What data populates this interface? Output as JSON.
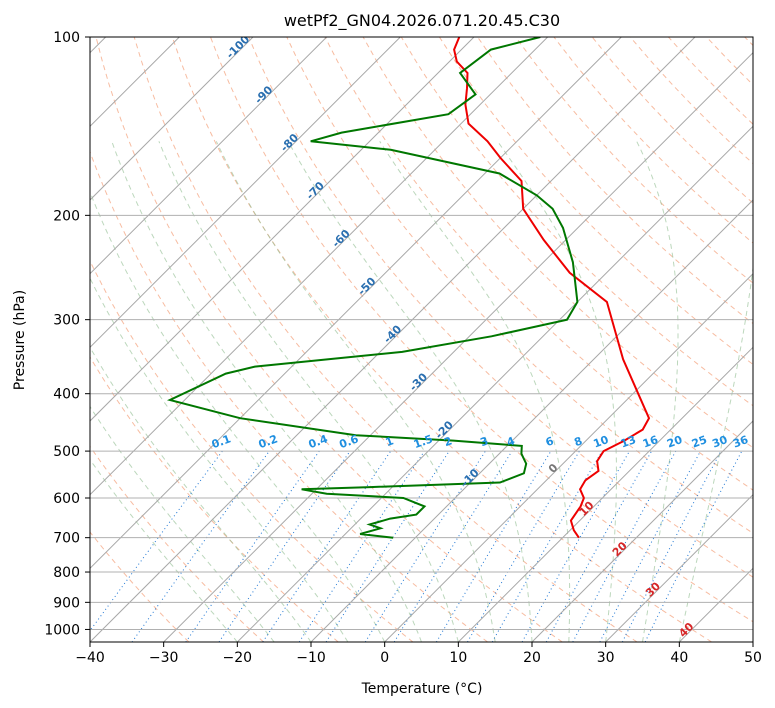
{
  "chart_data": {
    "type": "line",
    "subtype": "skew-t log-p diagram",
    "title": "wetPf2_GN04.2026.071.20.45.C30",
    "xlabel": "Temperature (°C)",
    "ylabel": "Pressure (hPa)",
    "xlim": [
      -40,
      50
    ],
    "ylim": [
      1050,
      100
    ],
    "yscale": "log",
    "x_ticks": [
      -40,
      -30,
      -20,
      -10,
      0,
      10,
      20,
      30,
      40,
      50
    ],
    "y_ticks": [
      1000,
      900,
      800,
      700,
      600,
      500,
      400,
      300,
      200,
      100
    ],
    "grid": true,
    "series": [
      {
        "color": "#ee0000",
        "points": [
          [
            12.2,
            700
          ],
          [
            10.5,
            680
          ],
          [
            8.8,
            655
          ],
          [
            8.2,
            620
          ],
          [
            7.5,
            600
          ],
          [
            5.8,
            580
          ],
          [
            5.3,
            560
          ],
          [
            5.8,
            540
          ],
          [
            4.3,
            520
          ],
          [
            3.8,
            500
          ],
          [
            5.2,
            480
          ],
          [
            6.2,
            460
          ],
          [
            5.5,
            440
          ],
          [
            -6,
            350
          ],
          [
            -16,
            280
          ],
          [
            -25,
            250
          ],
          [
            -33,
            220
          ],
          [
            -40,
            195
          ],
          [
            -44,
            175
          ],
          [
            -50,
            160
          ],
          [
            -54,
            150
          ],
          [
            -59,
            140
          ],
          [
            -62,
            130
          ],
          [
            -64,
            122
          ],
          [
            -66,
            115
          ],
          [
            -69,
            110
          ],
          [
            -71,
            105
          ],
          [
            -72,
            100
          ]
        ]
      },
      {
        "color": "#007700",
        "points": [
          [
            -13,
            700
          ],
          [
            -18,
            690
          ],
          [
            -16,
            675
          ],
          [
            -18,
            665
          ],
          [
            -16,
            650
          ],
          [
            -13,
            640
          ],
          [
            -13,
            620
          ],
          [
            -17,
            600
          ],
          [
            -28,
            590
          ],
          [
            -32,
            580
          ],
          [
            -23,
            575
          ],
          [
            -6,
            565
          ],
          [
            -4,
            545
          ],
          [
            -5,
            525
          ],
          [
            -7,
            505
          ],
          [
            -8,
            490
          ],
          [
            -18,
            480
          ],
          [
            -32,
            470
          ],
          [
            -50,
            440
          ],
          [
            -62,
            410
          ],
          [
            -58,
            370
          ],
          [
            -55,
            360
          ],
          [
            -37,
            340
          ],
          [
            -27,
            320
          ],
          [
            -19,
            300
          ],
          [
            -20,
            280
          ],
          [
            -26,
            240
          ],
          [
            -32,
            210
          ],
          [
            -36,
            195
          ],
          [
            -40,
            185
          ],
          [
            -48,
            170
          ],
          [
            -66,
            155
          ],
          [
            -78,
            150
          ],
          [
            -75,
            145
          ],
          [
            -63,
            135
          ],
          [
            -62,
            125
          ],
          [
            -67,
            115
          ],
          [
            -66,
            105
          ],
          [
            -61,
            100
          ]
        ]
      }
    ],
    "isotherm_labels": [
      "-100",
      "-90",
      "-80",
      "-70",
      "-60",
      "-50",
      "-40",
      "-30",
      "-20",
      "-10"
    ],
    "mixing_ratio_labels": [
      "0.1",
      "0.2",
      "0.4",
      "0.6",
      "1",
      "1.5",
      "2",
      "3",
      "4",
      "6",
      "8",
      "10",
      "13",
      "16",
      "20",
      "25",
      "30",
      "36"
    ],
    "isotherm_labels_lower": [
      "0",
      "10",
      "20",
      "30",
      "40"
    ]
  }
}
